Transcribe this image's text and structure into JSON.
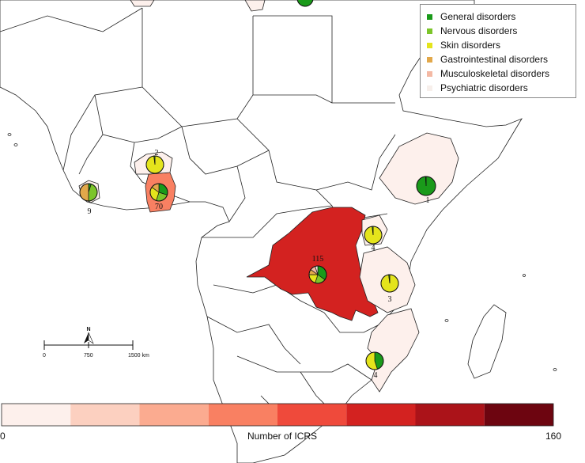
{
  "legend": {
    "items": [
      {
        "label": "General disorders",
        "color": "#1a9a1a"
      },
      {
        "label": "Nervous disorders",
        "color": "#7cc52a"
      },
      {
        "label": "Skin disorders",
        "color": "#e4e41c"
      },
      {
        "label": "Gastrointestinal disorders",
        "color": "#e2a84a"
      },
      {
        "label": "Musculoskeletal disorders",
        "color": "#f4b9a4"
      },
      {
        "label": "Psychiatric disorders",
        "color": "#f7efeb"
      }
    ]
  },
  "colorbar": {
    "min_label": "0",
    "max_label": "160",
    "title": "Number of ICRS",
    "colors": [
      "#fdf0ec",
      "#fcd0c0",
      "#fbab90",
      "#f98062",
      "#ef4a3b",
      "#d32220",
      "#ab1319",
      "#6d0510"
    ]
  },
  "scalebar": {
    "ticks": [
      "0",
      "750",
      "1500 km"
    ],
    "north_label": "N"
  },
  "countries": [
    {
      "name": "DR Congo",
      "count_label": "115",
      "fill": "#d32220"
    },
    {
      "name": "Cote d'Ivoire / Ghana",
      "count_label": "70",
      "fill": "#f98062"
    },
    {
      "name": "Burkina Faso",
      "count_label": "2",
      "fill": "#fdf0ec"
    },
    {
      "name": "Sierra Leone",
      "count_label": "9",
      "fill": "#fdf0ec"
    },
    {
      "name": "Ethiopia",
      "count_label": "1",
      "fill": "#fdf0ec"
    },
    {
      "name": "Uganda",
      "count_label": "4",
      "fill": "#fdf0ec"
    },
    {
      "name": "Tanzania",
      "count_label": "3",
      "fill": "#fdf0ec"
    },
    {
      "name": "Mozambique",
      "count_label": "4",
      "fill": "#fdf0ec"
    }
  ]
}
